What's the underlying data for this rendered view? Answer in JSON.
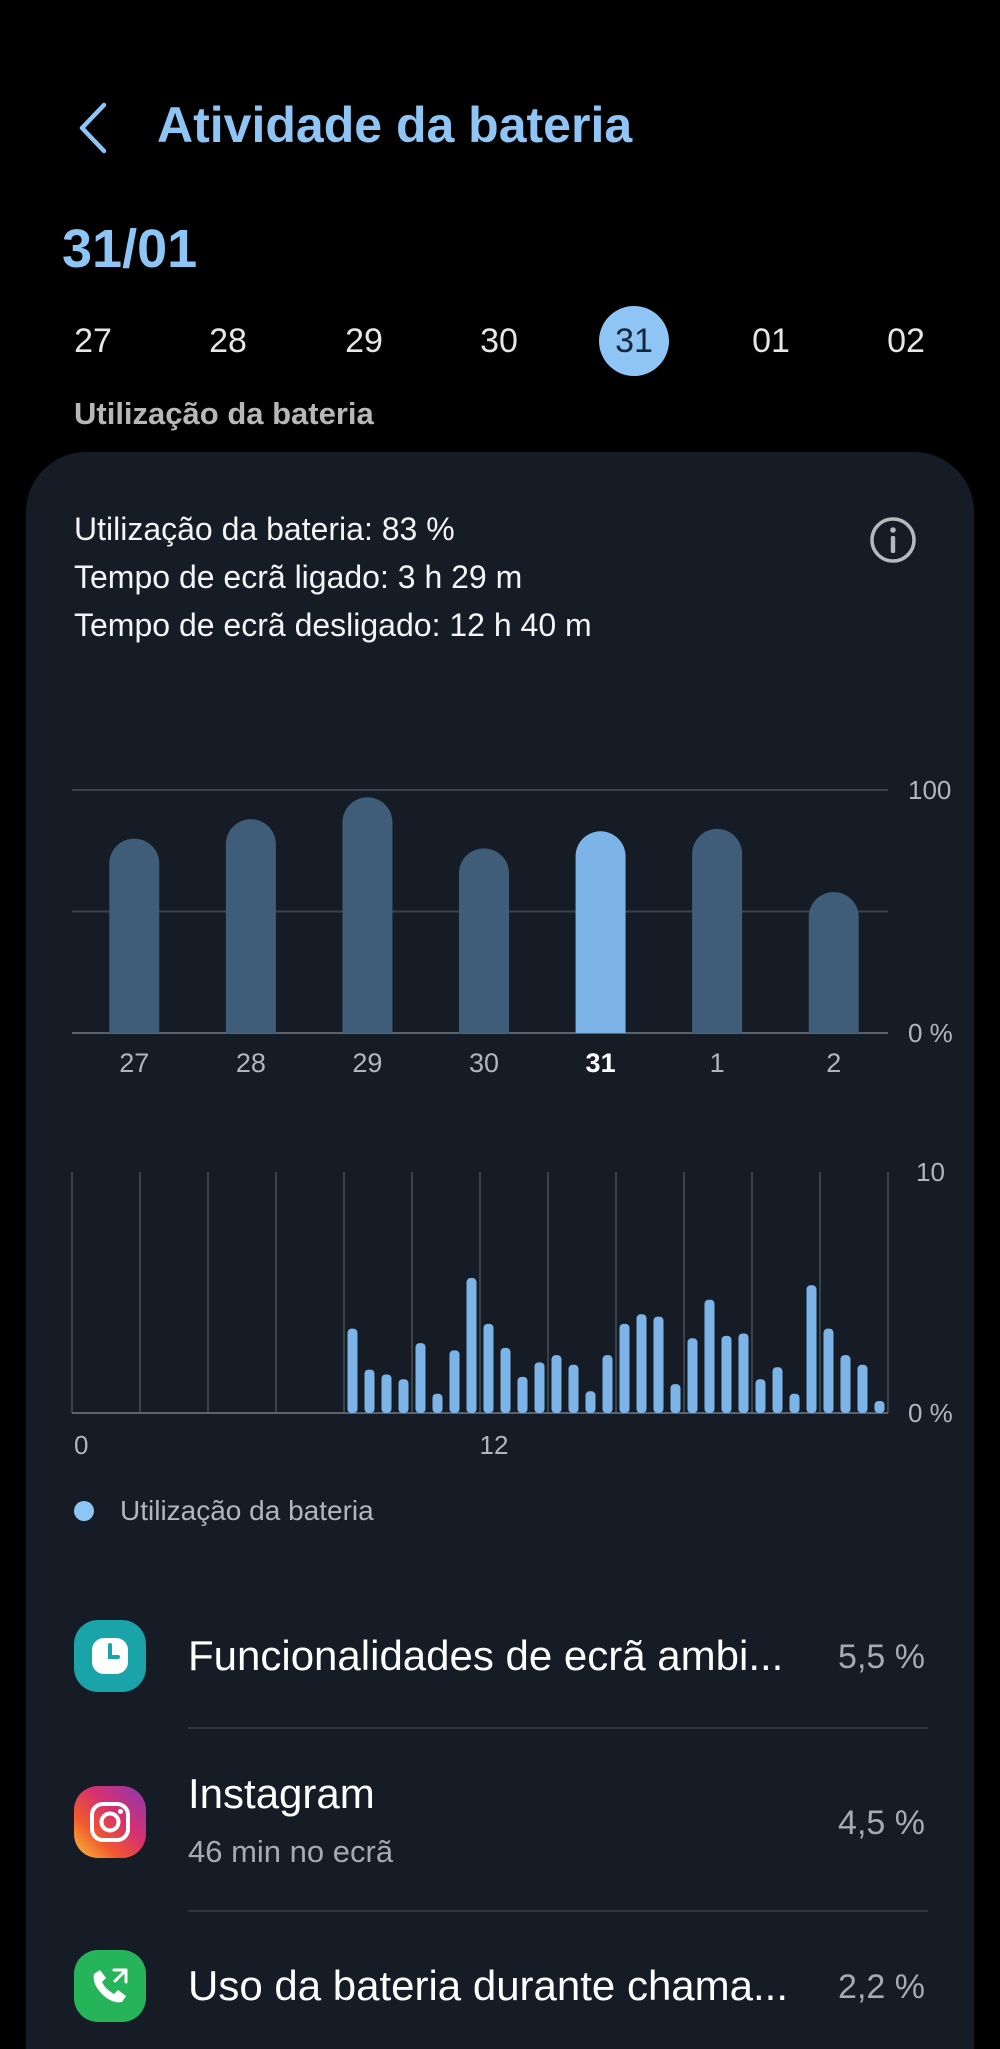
{
  "header": {
    "title": "Atividade da bateria",
    "back_icon": "chevron-left-icon"
  },
  "selected_date": "31/01",
  "date_strip": [
    "27",
    "28",
    "29",
    "30",
    "31",
    "01",
    "02"
  ],
  "selected_index": 4,
  "section_label": "Utilização da bateria",
  "summary": {
    "usage": "Utilização da bateria: 83 %",
    "screen_on": "Tempo de ecrã ligado: 3 h 29 m",
    "screen_off": "Tempo de ecrã desligado: 12 h 40 m",
    "info_icon": "info-icon"
  },
  "chart_data": [
    {
      "type": "bar",
      "categories": [
        "27",
        "28",
        "29",
        "30",
        "31",
        "1",
        "2"
      ],
      "values": [
        80,
        88,
        97,
        76,
        83,
        84,
        58
      ],
      "highlight": "31",
      "y_tick_labels": [
        "100",
        "0 %"
      ],
      "ylim": [
        0,
        100
      ],
      "grid": true,
      "colors": {
        "bar": "#3f5d78",
        "highlight": "#7cb4e8"
      }
    },
    {
      "type": "bar",
      "x_tick_labels": [
        "0",
        "12"
      ],
      "y_tick_labels": [
        "10",
        "0 %"
      ],
      "ylim": [
        0,
        10
      ],
      "bins_per_hour": 2,
      "values": [
        0,
        0,
        0,
        0,
        0,
        0,
        0,
        0,
        0,
        0,
        0,
        0,
        0,
        0,
        0,
        0,
        3.5,
        1.8,
        1.6,
        1.4,
        2.9,
        0.8,
        2.6,
        5.6,
        3.7,
        2.7,
        1.5,
        2.1,
        2.4,
        2.0,
        0.9,
        2.4,
        3.7,
        4.1,
        4.0,
        1.2,
        3.1,
        4.7,
        3.2,
        3.3,
        1.4,
        1.9,
        0.8,
        5.3,
        3.5,
        2.4,
        2.0,
        0.5
      ],
      "legend": [
        "Utilização da bateria"
      ],
      "colors": {
        "bar": "#7cb4e8"
      }
    }
  ],
  "legend_label": "Utilização da bateria",
  "apps": [
    {
      "name": "Funcionalidades de ecrã ambi...",
      "sub": "",
      "pct": "5,5 %",
      "icon": "clock-icon",
      "color": "#1aa3a8"
    },
    {
      "name": "Instagram",
      "sub": "46 min no ecrã",
      "pct": "4,5 %",
      "icon": "instagram-icon",
      "color": "#d6306f"
    },
    {
      "name": "Uso da bateria durante chama...",
      "sub": "",
      "pct": "2,2 %",
      "icon": "phone-call-icon",
      "color": "#26b45a"
    }
  ]
}
